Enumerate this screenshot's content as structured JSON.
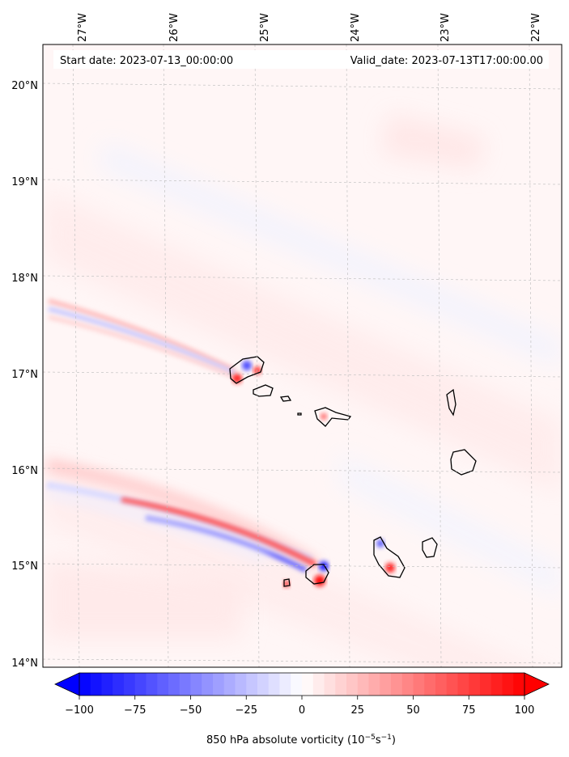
{
  "map": {
    "start_date": "Start date: 2023-07-13_00:00:00",
    "valid_date": "Valid_date: 2023-07-13T17:00:00.00",
    "lon_labels": [
      "27°W",
      "26°W",
      "25°W",
      "24°W",
      "23°W",
      "22°W"
    ],
    "lat_labels": [
      "20°N",
      "19°N",
      "18°N",
      "17°N",
      "16°N",
      "15°N",
      "14°N"
    ]
  },
  "colorbar": {
    "label": "850 hPa absolute vorticity (10",
    "label_exp1": "−5",
    "label_mid": "s",
    "label_exp2": "−1",
    "label_end": ")",
    "ticks": [
      "−100",
      "−75",
      "−50",
      "−25",
      "0",
      "25",
      "50",
      "75",
      "100"
    ],
    "min_color": "#0000ff",
    "mid_color": "#ffffff",
    "max_color": "#ff0000"
  }
}
